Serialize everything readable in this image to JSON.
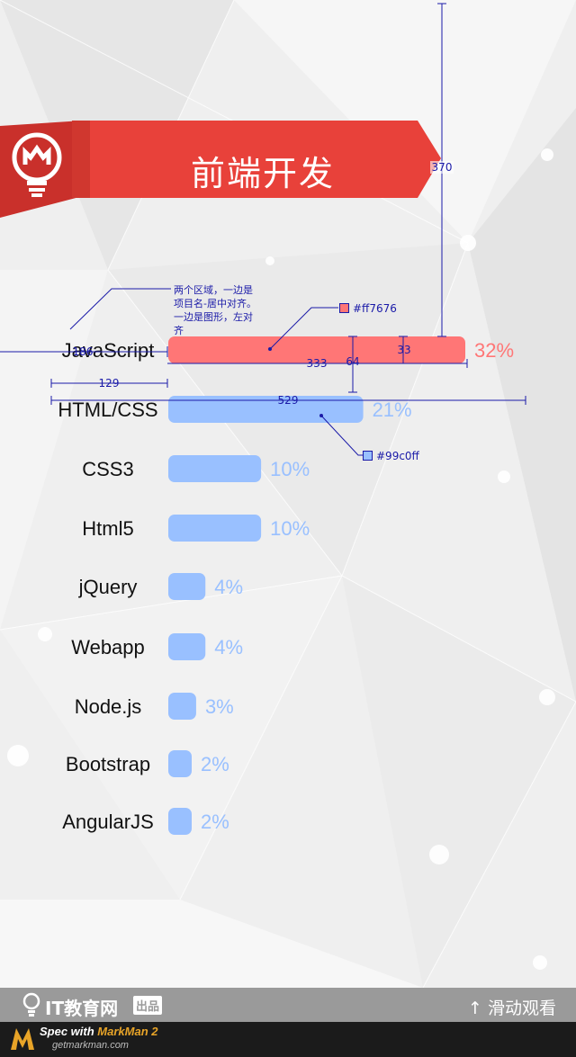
{
  "header": {
    "title": "前端开发",
    "icon": "lightbulb-icon",
    "banner_color": "#e8413a"
  },
  "chart_data": {
    "type": "bar",
    "orientation": "horizontal",
    "categories": [
      "JavaScript",
      "HTML/CSS",
      "CSS3",
      "Html5",
      "jQuery",
      "Webapp",
      "Node.js",
      "Bootstrap",
      "AngularJS"
    ],
    "values": [
      32,
      21,
      10,
      10,
      4,
      4,
      3,
      2,
      2
    ],
    "labels": [
      "32%",
      "21%",
      "10%",
      "10%",
      "4%",
      "4%",
      "3%",
      "2%",
      "2%"
    ],
    "unit": "%",
    "colors": {
      "highlight": "#ff7676",
      "default": "#99c0ff"
    },
    "highlight_index": 0
  },
  "annotations": {
    "note": "两个区域，一边是项目名-居中对齐。一边是图形，左对齐",
    "swatch_red": "#ff7676",
    "swatch_blue": "#99c0ff",
    "measures": {
      "height": "370",
      "label_w": "186",
      "label_col": "129",
      "bar_w": "333",
      "bar_h": "33",
      "row_gap": "64",
      "total_w": "529"
    }
  },
  "footer": {
    "brand": "IT教育网",
    "tag": "出品",
    "scroll_label": "滑动观看",
    "scroll_icon": "arrow-up-icon"
  },
  "markman": {
    "line1_prefix": "Spec with ",
    "line1_product": "MarkMan 2",
    "line2": "getmarkman.com"
  }
}
